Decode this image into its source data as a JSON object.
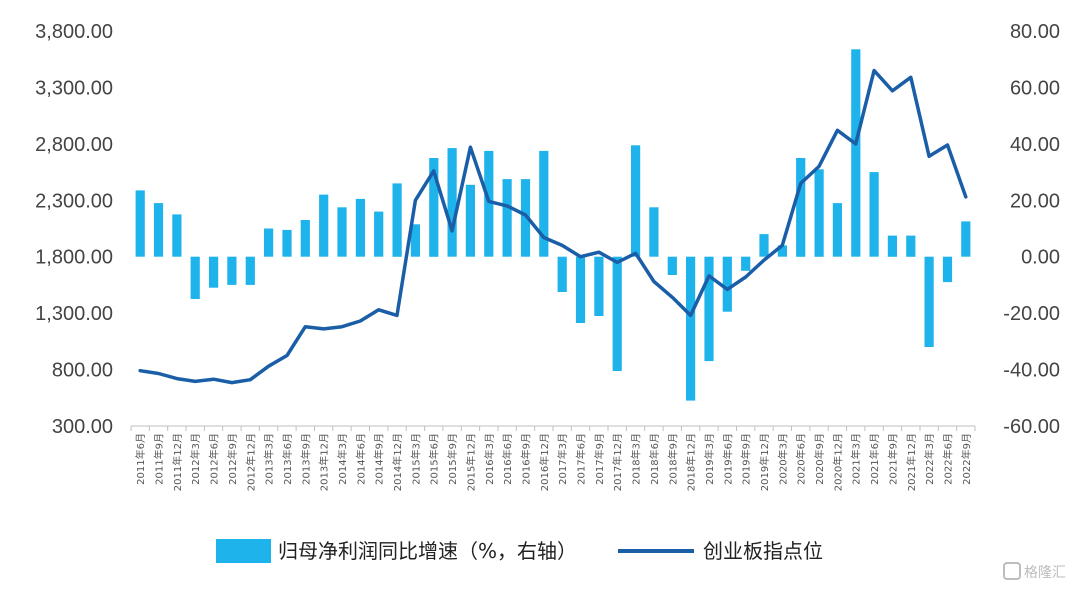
{
  "chart_data": {
    "type": "bar+line",
    "x": [
      "2011年6月",
      "2011年9月",
      "2011年12月",
      "2012年3月",
      "2012年6月",
      "2012年9月",
      "2012年12月",
      "2013年3月",
      "2013年6月",
      "2013年9月",
      "2013年12月",
      "2014年3月",
      "2014年6月",
      "2014年9月",
      "2014年12月",
      "2015年3月",
      "2015年6月",
      "2015年9月",
      "2015年12月",
      "2016年3月",
      "2016年6月",
      "2016年9月",
      "2016年12月",
      "2017年3月",
      "2017年6月",
      "2017年9月",
      "2017年12月",
      "2018年3月",
      "2018年6月",
      "2018年9月",
      "2018年12月",
      "2019年3月",
      "2019年6月",
      "2019年9月",
      "2019年12月",
      "2020年3月",
      "2020年6月",
      "2020年9月",
      "2020年12月",
      "2021年3月",
      "2021年6月",
      "2021年9月",
      "2021年12月",
      "2022年3月",
      "2022年6月",
      "2022年9月"
    ],
    "series": [
      {
        "name": "归母净利润同比增速（%，右轴）",
        "type": "bar",
        "axis": "right",
        "color": "#1fb3ec",
        "values": [
          23.5,
          19,
          15,
          -15,
          -11,
          -10,
          -10,
          10,
          9.5,
          13,
          22,
          17.5,
          20.5,
          16,
          26,
          11.5,
          35,
          38.5,
          25.5,
          37.5,
          27.5,
          27.5,
          37.5,
          -12.5,
          -23.5,
          -21,
          -40.5,
          39.5,
          17.5,
          -6.5,
          -51,
          -37,
          -19.5,
          -5,
          8,
          4,
          35,
          31,
          19,
          73.5,
          30,
          7.5,
          7.5,
          -32,
          -9,
          12.5
        ]
      },
      {
        "name": "创业板指点位",
        "type": "line",
        "axis": "left",
        "color": "#1b5ea8",
        "values": [
          790,
          765,
          720,
          695,
          715,
          685,
          710,
          830,
          925,
          1180,
          1160,
          1180,
          1230,
          1330,
          1280,
          2300,
          2560,
          2030,
          2770,
          2290,
          2250,
          2170,
          1970,
          1900,
          1800,
          1840,
          1750,
          1830,
          1580,
          1440,
          1280,
          1630,
          1510,
          1620,
          1770,
          1900,
          2450,
          2600,
          2920,
          2800,
          3450,
          3270,
          3390,
          2690,
          2790,
          2330
        ]
      }
    ],
    "yaxis_left": {
      "min": 300,
      "max": 3800,
      "ticks": [
        "3,800.00",
        "3,300.00",
        "2,800.00",
        "2,300.00",
        "1,800.00",
        "1,300.00",
        "800.00",
        "300.00"
      ]
    },
    "yaxis_right": {
      "min": -60,
      "max": 80,
      "ticks": [
        "80.00",
        "60.00",
        "40.00",
        "20.00",
        "0.00",
        "-20.00",
        "-40.00",
        "-60.00"
      ]
    },
    "legend_position": "bottom",
    "grid": false
  },
  "watermark": "格隆汇"
}
